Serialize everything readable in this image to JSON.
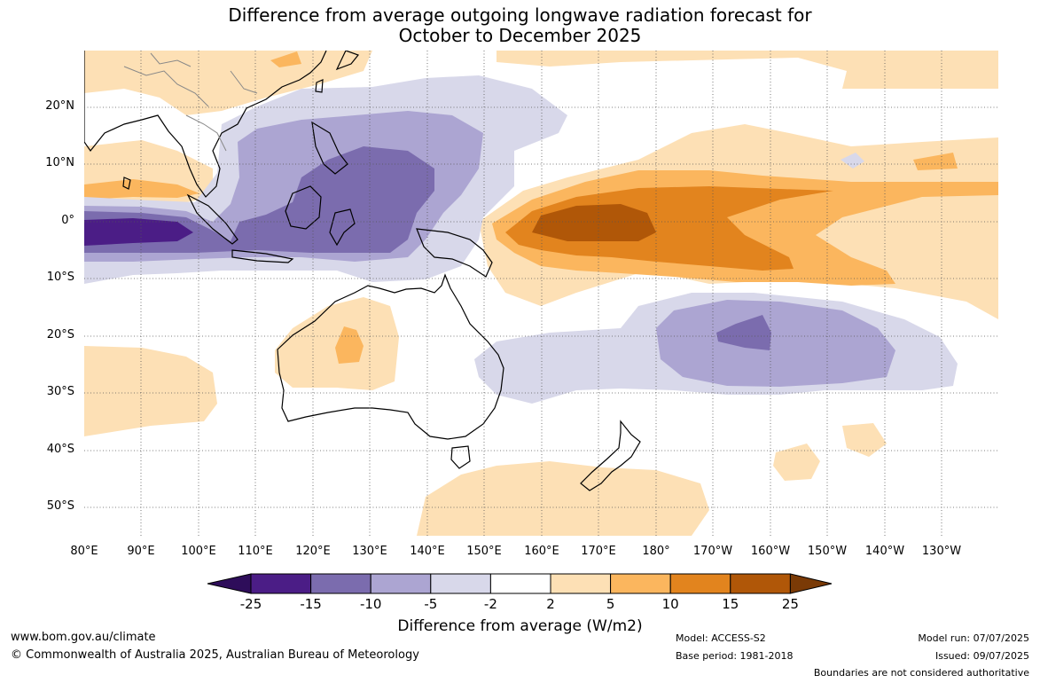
{
  "title": {
    "line1": "Difference from average outgoing longwave radiation forecast for",
    "line2": "October to December 2025"
  },
  "map": {
    "latitude_labels": [
      "20°N",
      "10°N",
      "0°",
      "10°S",
      "20°S",
      "30°S",
      "40°S",
      "50°S"
    ],
    "longitude_labels": [
      "80°E",
      "90°E",
      "100°E",
      "110°E",
      "120°E",
      "130°E",
      "140°E",
      "150°E",
      "160°E",
      "170°E",
      "180°",
      "170°W",
      "160°W",
      "150°W",
      "140°W",
      "130°W"
    ],
    "colors": {
      "neg25": "#4b1d86",
      "neg15": "#7b6cae",
      "neg10": "#aca5d2",
      "neg5": "#d8d8ea",
      "neutral": "#ffffff",
      "pos2": "#fde0b5",
      "pos5": "#fbb65e",
      "pos10": "#e2841e",
      "pos15": "#b05708",
      "pos25": "#7a3a06"
    }
  },
  "colorbar": {
    "ticks": [
      "-25",
      "-15",
      "-10",
      "-5",
      "-2",
      "2",
      "5",
      "10",
      "15",
      "25"
    ],
    "title": "Difference from average (W/m2)"
  },
  "footer": {
    "website": "www.bom.gov.au/climate",
    "copyright": "© Commonwealth of Australia 2025, Australian Bureau of Meteorology",
    "model": "Model: ACCESS-S2",
    "base_period": "Base period: 1981-2018",
    "model_run": "Model run: 07/07/2025",
    "issued": "Issued: 09/07/2025",
    "boundaries": "Boundaries are not considered authoritative"
  }
}
